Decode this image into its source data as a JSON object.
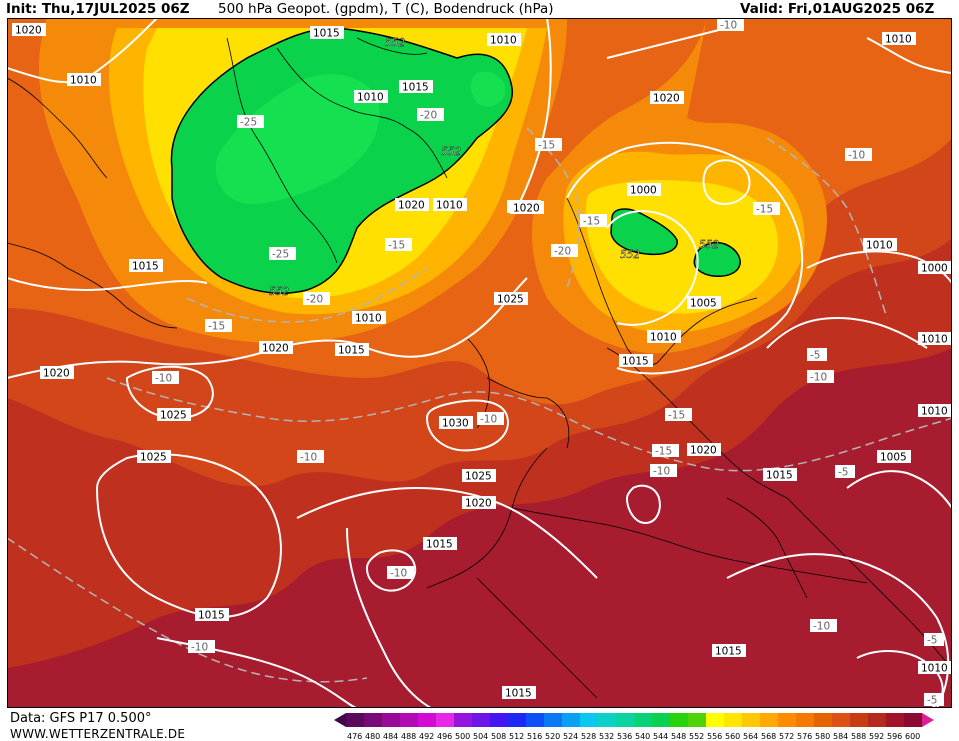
{
  "header": {
    "init": "Init: Thu,17JUL2025 06Z",
    "title": "500 hPa Geopot. (gpdm), T (C), Bodendruck (hPa)",
    "valid": "Valid: Fri,01AUG2025 06Z"
  },
  "footer": {
    "data_source": "Data: GFS P17 0.500°",
    "website": "WWW.WETTERZENTRALE.DE"
  },
  "legend": {
    "values": [
      "476",
      "480",
      "484",
      "488",
      "492",
      "496",
      "500",
      "504",
      "508",
      "512",
      "516",
      "520",
      "524",
      "528",
      "532",
      "536",
      "540",
      "544",
      "548",
      "552",
      "556",
      "560",
      "564",
      "568",
      "572",
      "576",
      "580",
      "584",
      "588",
      "592",
      "596",
      "600"
    ],
    "colors": [
      "#5a0a5a",
      "#780a78",
      "#960a96",
      "#b40ab4",
      "#d20ad2",
      "#e628e6",
      "#9614dc",
      "#6e14e6",
      "#4614f0",
      "#1e28f5",
      "#0a50f5",
      "#0a78f5",
      "#0aa0f5",
      "#0ac8f0",
      "#0ad2c8",
      "#0ad2a0",
      "#0ad278",
      "#0ad250",
      "#28d20a",
      "#50d20a",
      "#ffff00",
      "#ffe600",
      "#ffc800",
      "#ffaa00",
      "#ff8c00",
      "#f57800",
      "#e66400",
      "#dc5014",
      "#c83c14",
      "#b4281e",
      "#a01428",
      "#8c0a32"
    ]
  },
  "map": {
    "colors": {
      "deep_red": "#a81c30",
      "red": "#c0301e",
      "red_orange": "#d2461a",
      "orange": "#e66414",
      "light_orange": "#f58a0a",
      "amber": "#ffb400",
      "yellow": "#ffe000",
      "green_bright": "#14e050",
      "green": "#0ad24a",
      "isobar": "#ffffff",
      "isotherm": "#b4b4b4",
      "coast": "#000000"
    },
    "isobar_labels": [
      "1015",
      "1010",
      "1010",
      "1010",
      "1015",
      "1010",
      "1000",
      "1020",
      "1010",
      "1020",
      "1020",
      "1010",
      "1025",
      "1015",
      "1000",
      "1010",
      "1005",
      "1020",
      "1020",
      "1015",
      "1010",
      "1015",
      "1030",
      "1025",
      "1020",
      "1015",
      "1020",
      "1005",
      "1015",
      "1025",
      "1025",
      "1020",
      "1015",
      "1015",
      "1010",
      "1010",
      "1010",
      "1015",
      "1020"
    ],
    "isotherm_labels": [
      "-10",
      "-25",
      "-20",
      "-15",
      "-10",
      "-15",
      "-15",
      "-20",
      "-25",
      "-20",
      "-15",
      "-15",
      "-15",
      "-10",
      "-10",
      "-15",
      "-10",
      "-10",
      "-10",
      "-10",
      "-5",
      "-10",
      "-10",
      "-5",
      "-5",
      "-5"
    ],
    "height_labels": [
      "552",
      "552",
      "552",
      "552",
      "552"
    ]
  }
}
